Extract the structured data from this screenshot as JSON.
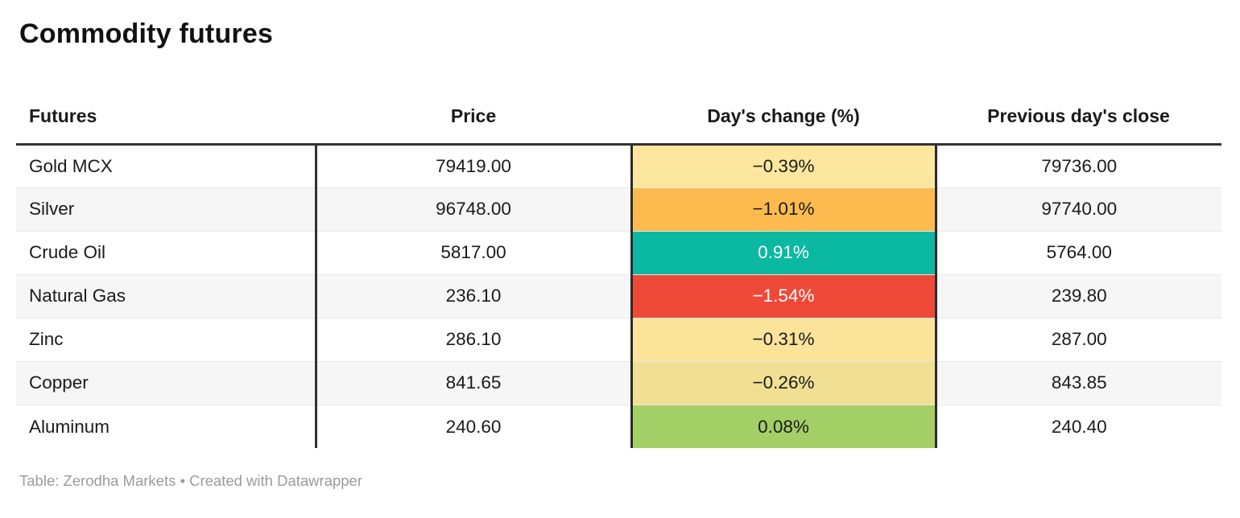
{
  "title": "Commodity futures",
  "chart_data": {
    "type": "table",
    "title": "Commodity futures",
    "columns": [
      "Futures",
      "Price",
      "Day's change (%)",
      "Previous day's close"
    ],
    "heatmap_column": "Day's change (%)",
    "rows": [
      {
        "futures": "Gold MCX",
        "price": "79419.00",
        "change": "−0.39%",
        "change_value": -0.39,
        "change_bg": "#fde79e",
        "change_fg": "#1a1a1a",
        "prev_close": "79736.00"
      },
      {
        "futures": "Silver",
        "price": "96748.00",
        "change": "−1.01%",
        "change_value": -1.01,
        "change_bg": "#fdbb4f",
        "change_fg": "#1a1a1a",
        "prev_close": "97740.00"
      },
      {
        "futures": "Crude Oil",
        "price": "5817.00",
        "change": "0.91%",
        "change_value": 0.91,
        "change_bg": "#0bb8a1",
        "change_fg": "#ffffff",
        "prev_close": "5764.00"
      },
      {
        "futures": "Natural Gas",
        "price": "236.10",
        "change": "−1.54%",
        "change_value": -1.54,
        "change_bg": "#ee4937",
        "change_fg": "#ffffff",
        "prev_close": "239.80"
      },
      {
        "futures": "Zinc",
        "price": "286.10",
        "change": "−0.31%",
        "change_value": -0.31,
        "change_bg": "#fce39a",
        "change_fg": "#1a1a1a",
        "prev_close": "287.00"
      },
      {
        "futures": "Copper",
        "price": "841.65",
        "change": "−0.26%",
        "change_value": -0.26,
        "change_bg": "#f1e093",
        "change_fg": "#1a1a1a",
        "prev_close": "843.85"
      },
      {
        "futures": "Aluminum",
        "price": "240.60",
        "change": "0.08%",
        "change_value": 0.08,
        "change_bg": "#a4ce66",
        "change_fg": "#1a1a1a",
        "prev_close": "240.40"
      }
    ]
  },
  "footer": {
    "text": "Table: Zerodha Markets • Created with Datawrapper"
  },
  "colors": {
    "header_rule": "#333333",
    "row_alt_bg": "#f6f6f6",
    "row_divider": "#e8e8e8",
    "footer_text": "#9b9b9b",
    "positive_strong": "#0bb8a1",
    "positive_mild": "#a4ce66",
    "negative_strong": "#ee4937",
    "negative_medium": "#fdbb4f",
    "negative_mild": "#fde79e"
  }
}
